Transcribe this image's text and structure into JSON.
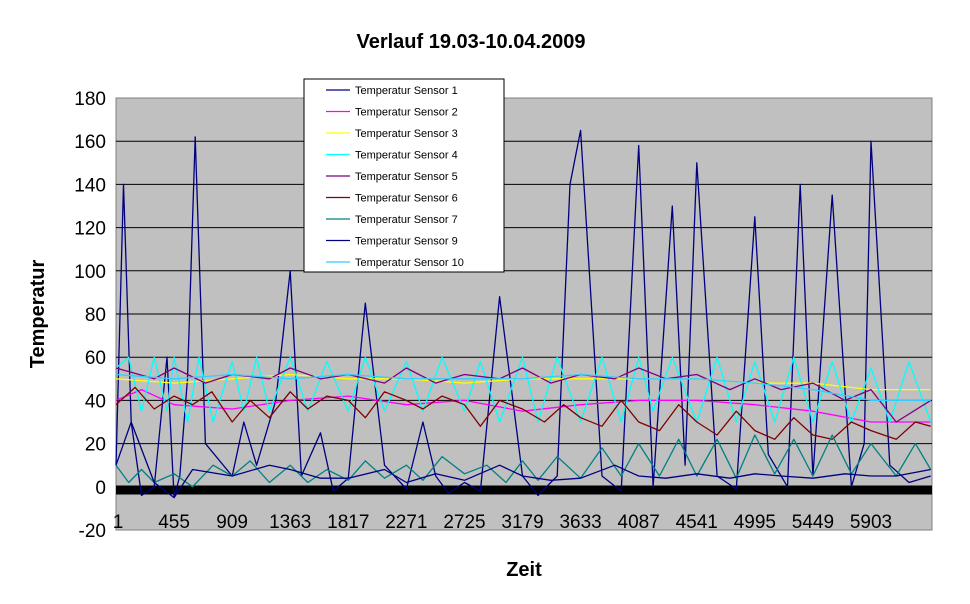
{
  "chart_data": {
    "type": "line",
    "title": "Verlauf 19.03-10.04.2009",
    "xlabel": "Zeit",
    "ylabel": "Temperatur",
    "xlim": [
      1,
      6380
    ],
    "ylim": [
      -20,
      180
    ],
    "y_ticks": [
      -20,
      0,
      20,
      40,
      60,
      80,
      100,
      120,
      140,
      160,
      180
    ],
    "x_ticks": [
      "1",
      "455",
      "909",
      "1363",
      "1817",
      "2271",
      "2725",
      "3179",
      "3633",
      "4087",
      "4541",
      "4995",
      "5449",
      "5903"
    ],
    "x_tick_values": [
      1,
      455,
      909,
      1363,
      1817,
      2271,
      2725,
      3179,
      3633,
      4087,
      4541,
      4995,
      5449,
      5903
    ],
    "plot_background": "#c0c0c0",
    "grid": true,
    "legend_position": "top-center",
    "series": [
      {
        "name": "Temperatur Sensor 1",
        "color": "#000080",
        "x": [
          1,
          60,
          120,
          200,
          300,
          400,
          455,
          500,
          560,
          620,
          700,
          909,
          1000,
          1100,
          1250,
          1363,
          1450,
          1600,
          1700,
          1817,
          1950,
          2100,
          2271,
          2400,
          2500,
          2600,
          2725,
          2850,
          3000,
          3179,
          3300,
          3450,
          3550,
          3633,
          3800,
          3950,
          4087,
          4200,
          4350,
          4450,
          4541,
          4700,
          4850,
          4995,
          5100,
          5250,
          5350,
          5449,
          5600,
          5750,
          5850,
          5903,
          6050,
          6200,
          6370
        ],
        "values": [
          10,
          140,
          30,
          -4,
          0,
          60,
          -5,
          5,
          50,
          162,
          20,
          5,
          30,
          10,
          40,
          100,
          5,
          25,
          -2,
          4,
          85,
          10,
          -1,
          30,
          5,
          -3,
          2,
          -2,
          88,
          5,
          -4,
          5,
          140,
          165,
          5,
          -2,
          158,
          0,
          130,
          10,
          150,
          5,
          -1,
          125,
          15,
          0,
          140,
          5,
          135,
          0,
          20,
          160,
          10,
          2,
          5
        ]
      },
      {
        "name": "Temperatur Sensor 2",
        "color": "#ff00ff",
        "x": [
          1,
          200,
          455,
          909,
          1363,
          1817,
          2271,
          2725,
          3179,
          3633,
          4087,
          4541,
          4995,
          5449,
          5903,
          6370
        ],
        "values": [
          40,
          45,
          38,
          36,
          40,
          42,
          38,
          40,
          35,
          38,
          40,
          40,
          38,
          35,
          30,
          30
        ]
      },
      {
        "name": "Temperatur Sensor 3",
        "color": "#ffff00",
        "x": [
          1,
          455,
          909,
          1363,
          1817,
          2271,
          2725,
          3179,
          3633,
          4087,
          4541,
          4995,
          5449,
          5903,
          6370
        ],
        "values": [
          50,
          48,
          50,
          52,
          50,
          50,
          48,
          50,
          50,
          50,
          50,
          48,
          48,
          45,
          45
        ]
      },
      {
        "name": "Temperatur Sensor 4",
        "color": "#00ffff",
        "x": [
          1,
          100,
          200,
          300,
          400,
          455,
          560,
          650,
          760,
          909,
          1000,
          1100,
          1200,
          1363,
          1500,
          1650,
          1817,
          1950,
          2100,
          2271,
          2400,
          2550,
          2725,
          2850,
          3000,
          3179,
          3300,
          3450,
          3633,
          3800,
          3950,
          4087,
          4200,
          4350,
          4541,
          4700,
          4850,
          4995,
          5150,
          5300,
          5449,
          5600,
          5750,
          5903,
          6050,
          6200,
          6370
        ],
        "values": [
          55,
          60,
          35,
          60,
          35,
          60,
          30,
          60,
          30,
          58,
          35,
          60,
          35,
          60,
          35,
          58,
          35,
          60,
          35,
          58,
          35,
          60,
          35,
          58,
          30,
          60,
          30,
          60,
          30,
          60,
          30,
          60,
          35,
          60,
          30,
          60,
          30,
          58,
          30,
          60,
          30,
          58,
          30,
          55,
          30,
          58,
          30
        ]
      },
      {
        "name": "Temperatur Sensor 5",
        "color": "#800080",
        "x": [
          1,
          300,
          455,
          700,
          909,
          1200,
          1363,
          1600,
          1817,
          2100,
          2271,
          2500,
          2725,
          3000,
          3179,
          3400,
          3633,
          3900,
          4087,
          4300,
          4541,
          4800,
          4995,
          5200,
          5449,
          5700,
          5903,
          6100,
          6370
        ],
        "values": [
          55,
          50,
          55,
          48,
          52,
          50,
          55,
          50,
          52,
          48,
          55,
          48,
          52,
          50,
          55,
          48,
          52,
          50,
          55,
          50,
          52,
          45,
          50,
          45,
          48,
          40,
          45,
          30,
          40
        ]
      },
      {
        "name": "Temperatur Sensor 6",
        "color": "#800000",
        "x": [
          1,
          150,
          300,
          455,
          600,
          750,
          909,
          1050,
          1200,
          1363,
          1500,
          1650,
          1817,
          1950,
          2100,
          2271,
          2400,
          2550,
          2725,
          2850,
          3000,
          3179,
          3350,
          3500,
          3633,
          3800,
          3950,
          4087,
          4250,
          4400,
          4541,
          4700,
          4850,
          4995,
          5150,
          5300,
          5449,
          5600,
          5750,
          5903,
          6100,
          6250,
          6370
        ],
        "values": [
          38,
          46,
          36,
          42,
          38,
          44,
          30,
          40,
          32,
          44,
          36,
          42,
          40,
          32,
          44,
          40,
          36,
          42,
          38,
          28,
          40,
          36,
          30,
          38,
          32,
          28,
          40,
          30,
          26,
          38,
          30,
          24,
          35,
          26,
          22,
          32,
          24,
          22,
          30,
          26,
          22,
          30,
          28
        ]
      },
      {
        "name": "Temperatur Sensor 7",
        "color": "#008080",
        "x": [
          1,
          100,
          200,
          300,
          455,
          600,
          760,
          909,
          1050,
          1200,
          1363,
          1500,
          1650,
          1817,
          1950,
          2100,
          2271,
          2400,
          2550,
          2725,
          2900,
          3050,
          3179,
          3300,
          3450,
          3633,
          3800,
          3950,
          4087,
          4250,
          4400,
          4541,
          4700,
          4850,
          4995,
          5150,
          5300,
          5449,
          5600,
          5750,
          5903,
          6100,
          6250,
          6370
        ],
        "values": [
          10,
          2,
          8,
          2,
          6,
          0,
          10,
          5,
          12,
          2,
          10,
          2,
          8,
          3,
          12,
          4,
          10,
          3,
          14,
          6,
          10,
          2,
          12,
          3,
          14,
          4,
          18,
          5,
          20,
          5,
          22,
          5,
          22,
          4,
          24,
          6,
          22,
          5,
          24,
          6,
          20,
          5,
          20,
          8
        ]
      },
      {
        "name": "Temperatur Sensor 9",
        "color": "#000080",
        "x": [
          1,
          120,
          300,
          455,
          600,
          909,
          1200,
          1363,
          1600,
          1817,
          2100,
          2271,
          2500,
          2725,
          3000,
          3179,
          3400,
          3633,
          3900,
          4087,
          4300,
          4541,
          4800,
          4995,
          5200,
          5449,
          5700,
          5903,
          6100,
          6370
        ],
        "values": [
          10,
          30,
          2,
          -5,
          8,
          5,
          10,
          8,
          4,
          4,
          8,
          2,
          6,
          3,
          10,
          5,
          3,
          4,
          10,
          5,
          4,
          6,
          4,
          6,
          5,
          4,
          6,
          5,
          5,
          8
        ]
      },
      {
        "name": "Temperatur Sensor 10",
        "color": "#33ccff",
        "x": [
          1,
          455,
          909,
          1363,
          1817,
          2271,
          2725,
          3179,
          3633,
          4087,
          4541,
          4995,
          5449,
          5903,
          6370
        ],
        "values": [
          52,
          50,
          52,
          50,
          52,
          50,
          50,
          50,
          52,
          50,
          50,
          48,
          45,
          40,
          40
        ]
      }
    ]
  }
}
